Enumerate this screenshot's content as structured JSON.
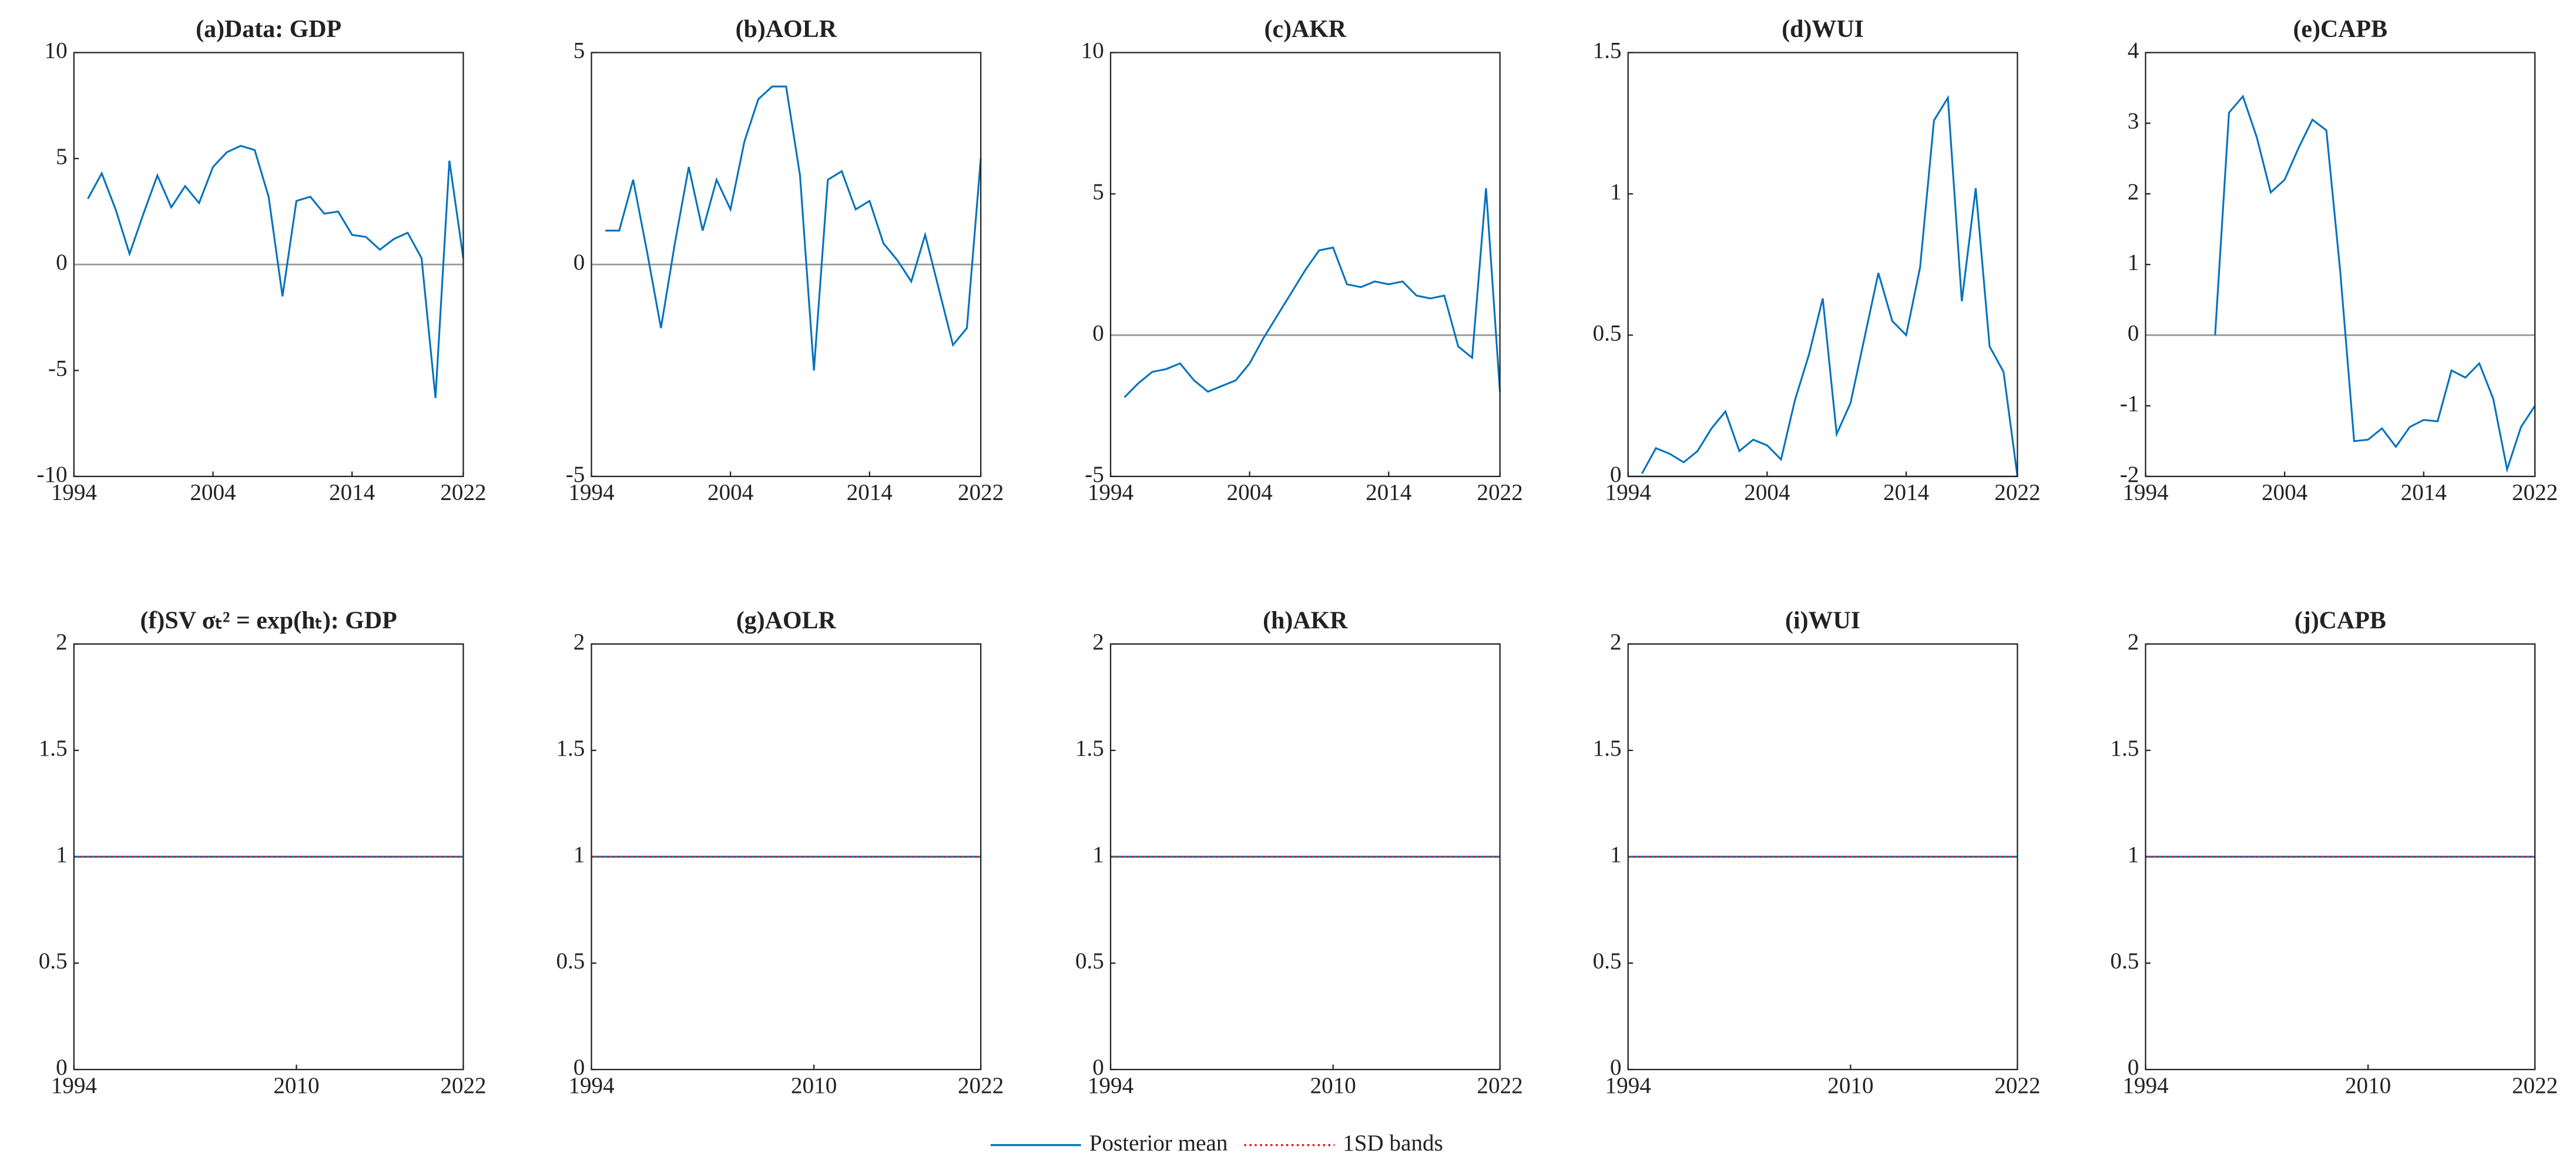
{
  "chart_data": [
    {
      "type": "line",
      "title": "(a)Data: GDP",
      "x": [
        1995,
        1996,
        1997,
        1998,
        1999,
        2000,
        2001,
        2002,
        2003,
        2004,
        2005,
        2006,
        2007,
        2008,
        2009,
        2010,
        2011,
        2012,
        2013,
        2014,
        2015,
        2016,
        2017,
        2018,
        2019,
        2020,
        2021,
        2022
      ],
      "values": [
        3.1,
        4.3,
        2.6,
        0.5,
        2.4,
        4.2,
        2.7,
        3.7,
        2.9,
        4.6,
        5.3,
        5.6,
        5.4,
        3.2,
        -1.5,
        3.0,
        3.2,
        2.4,
        2.5,
        1.4,
        1.3,
        0.7,
        1.2,
        1.5,
        0.3,
        -6.3,
        4.9,
        0.3
      ],
      "color": "#0072BD",
      "xlim": [
        1994,
        2022
      ],
      "xticks": [
        1994,
        2004,
        2014,
        2022
      ],
      "ylim": [
        -10,
        10
      ],
      "yticks": [
        -10,
        -5,
        0,
        5,
        10
      ],
      "zero_line": true
    },
    {
      "type": "line",
      "title": "(b)AOLR",
      "x": [
        1995,
        1996,
        1997,
        1998,
        1999,
        2000,
        2001,
        2002,
        2003,
        2004,
        2005,
        2006,
        2007,
        2008,
        2009,
        2010,
        2011,
        2012,
        2013,
        2014,
        2015,
        2016,
        2017,
        2018,
        2019,
        2020,
        2021,
        2022
      ],
      "values": [
        0.8,
        0.8,
        2.0,
        0.3,
        -1.5,
        0.5,
        2.3,
        0.8,
        2.0,
        1.3,
        2.9,
        3.9,
        4.2,
        4.2,
        2.1,
        -2.5,
        2.0,
        2.2,
        1.3,
        1.5,
        0.5,
        0.1,
        -0.4,
        0.7,
        -0.6,
        -1.9,
        -1.5,
        2.5
      ],
      "color": "#0072BD",
      "xlim": [
        1994,
        2022
      ],
      "xticks": [
        1994,
        2004,
        2014,
        2022
      ],
      "ylim": [
        -5,
        5
      ],
      "yticks": [
        -5,
        0,
        5
      ],
      "zero_line": true
    },
    {
      "type": "line",
      "title": "(c)AKR",
      "x": [
        1995,
        1996,
        1997,
        1998,
        1999,
        2000,
        2001,
        2002,
        2003,
        2004,
        2005,
        2006,
        2007,
        2008,
        2009,
        2010,
        2011,
        2012,
        2013,
        2014,
        2015,
        2016,
        2017,
        2018,
        2019,
        2020,
        2021,
        2022
      ],
      "values": [
        -2.2,
        -1.7,
        -1.3,
        -1.2,
        -1.0,
        -1.6,
        -2.0,
        -1.8,
        -1.6,
        -1.0,
        -0.1,
        0.7,
        1.5,
        2.3,
        3.0,
        3.1,
        1.8,
        1.7,
        1.9,
        1.8,
        1.9,
        1.4,
        1.3,
        1.4,
        -0.4,
        -0.8,
        5.2,
        -2.0
      ],
      "color": "#0072BD",
      "xlim": [
        1994,
        2022
      ],
      "xticks": [
        1994,
        2004,
        2014,
        2022
      ],
      "ylim": [
        -5,
        10
      ],
      "yticks": [
        -5,
        0,
        5,
        10
      ],
      "zero_line": true
    },
    {
      "type": "line",
      "title": "(d)WUI",
      "x": [
        1995,
        1996,
        1997,
        1998,
        1999,
        2000,
        2001,
        2002,
        2003,
        2004,
        2005,
        2006,
        2007,
        2008,
        2009,
        2010,
        2011,
        2012,
        2013,
        2014,
        2015,
        2016,
        2017,
        2018,
        2019,
        2020,
        2021,
        2022
      ],
      "values": [
        0.01,
        0.1,
        0.08,
        0.05,
        0.09,
        0.17,
        0.23,
        0.09,
        0.13,
        0.11,
        0.06,
        0.27,
        0.43,
        0.63,
        0.15,
        0.26,
        0.49,
        0.72,
        0.55,
        0.5,
        0.74,
        1.26,
        1.34,
        0.62,
        1.02,
        0.46,
        0.37,
        0.0
      ],
      "color": "#0072BD",
      "xlim": [
        1994,
        2022
      ],
      "xticks": [
        1994,
        2004,
        2014,
        2022
      ],
      "ylim": [
        0,
        1.5
      ],
      "yticks": [
        0,
        0.5,
        1,
        1.5
      ],
      "zero_line": true
    },
    {
      "type": "line",
      "title": "(e)CAPB",
      "x": [
        1995,
        1996,
        1997,
        1998,
        1999,
        2000,
        2001,
        2002,
        2003,
        2004,
        2005,
        2006,
        2007,
        2008,
        2009,
        2010,
        2011,
        2012,
        2013,
        2014,
        2015,
        2016,
        2017,
        2018,
        2019,
        2020,
        2021,
        2022
      ],
      "values": [
        null,
        null,
        null,
        null,
        0,
        3.15,
        3.38,
        2.8,
        2.02,
        2.2,
        2.65,
        3.05,
        2.9,
        0.9,
        -1.5,
        -1.48,
        -1.32,
        -1.58,
        -1.3,
        -1.2,
        -1.22,
        -0.5,
        -0.6,
        -0.4,
        -0.9,
        -1.9,
        -1.3,
        -1.0
      ],
      "color": "#0072BD",
      "xlim": [
        1994,
        2022
      ],
      "xticks": [
        1994,
        2004,
        2014,
        2022
      ],
      "ylim": [
        -2,
        4
      ],
      "yticks": [
        -2,
        -1,
        0,
        1,
        2,
        3,
        4
      ],
      "zero_line": true
    },
    {
      "type": "line",
      "title": "(f)SV σₜ² = exp(hₜ): GDP",
      "x": [
        1994,
        2022
      ],
      "series": [
        {
          "name": "Posterior mean",
          "color": "#0072BD",
          "values": [
            1,
            1
          ]
        },
        {
          "name": "1SD bands",
          "color": "#FF0000",
          "dash": "dotted",
          "values": [
            1,
            1
          ]
        }
      ],
      "xlim": [
        1994,
        2022
      ],
      "xticks": [
        1994,
        2010,
        2022
      ],
      "ylim": [
        0,
        2
      ],
      "yticks": [
        0,
        0.5,
        1,
        1.5,
        2
      ],
      "zero_line": false
    },
    {
      "type": "line",
      "title": "(g)AOLR",
      "x": [
        1994,
        2022
      ],
      "series": [
        {
          "name": "Posterior mean",
          "color": "#0072BD",
          "values": [
            1,
            1
          ]
        },
        {
          "name": "1SD bands",
          "color": "#FF0000",
          "dash": "dotted",
          "values": [
            1,
            1
          ]
        }
      ],
      "xlim": [
        1994,
        2022
      ],
      "xticks": [
        1994,
        2010,
        2022
      ],
      "ylim": [
        0,
        2
      ],
      "yticks": [
        0,
        0.5,
        1,
        1.5,
        2
      ],
      "zero_line": false
    },
    {
      "type": "line",
      "title": "(h)AKR",
      "x": [
        1994,
        2022
      ],
      "series": [
        {
          "name": "Posterior mean",
          "color": "#0072BD",
          "values": [
            1,
            1
          ]
        },
        {
          "name": "1SD bands",
          "color": "#FF0000",
          "dash": "dotted",
          "values": [
            1,
            1
          ]
        }
      ],
      "xlim": [
        1994,
        2022
      ],
      "xticks": [
        1994,
        2010,
        2022
      ],
      "ylim": [
        0,
        2
      ],
      "yticks": [
        0,
        0.5,
        1,
        1.5,
        2
      ],
      "zero_line": false
    },
    {
      "type": "line",
      "title": "(i)WUI",
      "x": [
        1994,
        2022
      ],
      "series": [
        {
          "name": "Posterior mean",
          "color": "#0072BD",
          "values": [
            1,
            1
          ]
        },
        {
          "name": "1SD bands",
          "color": "#FF0000",
          "dash": "dotted",
          "values": [
            1,
            1
          ]
        }
      ],
      "xlim": [
        1994,
        2022
      ],
      "xticks": [
        1994,
        2010,
        2022
      ],
      "ylim": [
        0,
        2
      ],
      "yticks": [
        0,
        0.5,
        1,
        1.5,
        2
      ],
      "zero_line": false
    },
    {
      "type": "line",
      "title": "(j)CAPB",
      "x": [
        1994,
        2022
      ],
      "series": [
        {
          "name": "Posterior mean",
          "color": "#0072BD",
          "values": [
            1,
            1
          ]
        },
        {
          "name": "1SD bands",
          "color": "#FF0000",
          "dash": "dotted",
          "values": [
            1,
            1
          ]
        }
      ],
      "xlim": [
        1994,
        2022
      ],
      "xticks": [
        1994,
        2010,
        2022
      ],
      "ylim": [
        0,
        2
      ],
      "yticks": [
        0,
        0.5,
        1,
        1.5,
        2
      ],
      "zero_line": false
    }
  ]
}
